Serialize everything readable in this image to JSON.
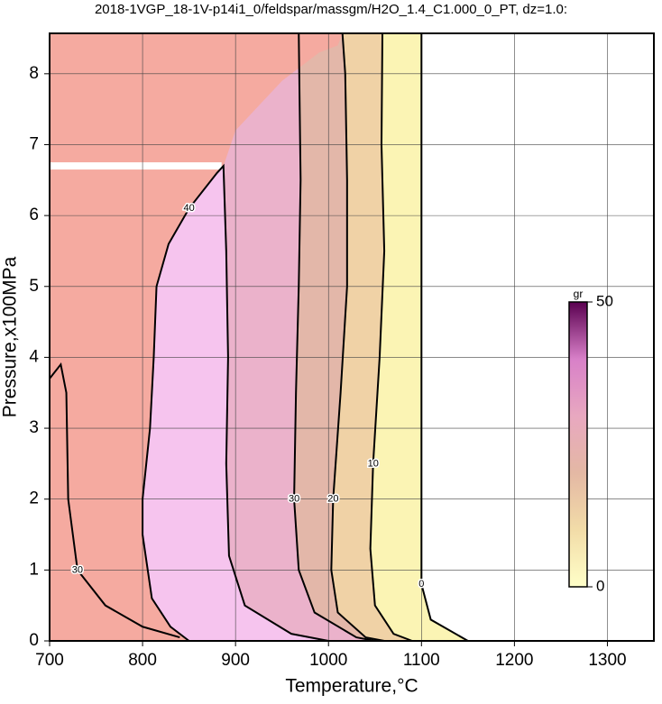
{
  "chart_data": {
    "type": "contour",
    "title": "2018-1VGP_18-1V-p14i1_0/feldspar/massgm/H2O_1.4_C1.000_0_PT, dz=1.0:",
    "x_label": "Temperature,°C",
    "y_label": "Pressure,x100MPa",
    "xlim": [
      700,
      1350
    ],
    "ylim": [
      0,
      8.57
    ],
    "xticks": [
      700,
      800,
      900,
      1000,
      1100,
      1200,
      1300
    ],
    "yticks": [
      0,
      1,
      2,
      3,
      4,
      5,
      6,
      7,
      8
    ],
    "grid": true,
    "series": [
      {
        "level": 0,
        "color": "#fbf4b4",
        "x": [
          1100,
          1100,
          1100,
          1110,
          1150
        ],
        "y": [
          8.57,
          4,
          0.8,
          0.3,
          0
        ]
      },
      {
        "level": 10,
        "color": "#f0d2a6",
        "x": [
          1058,
          1057,
          1060,
          1055,
          1048,
          1045,
          1050,
          1070,
          1090
        ],
        "y": [
          8.57,
          7,
          5.5,
          4,
          2.5,
          1.3,
          0.5,
          0.1,
          0
        ]
      },
      {
        "level": 20,
        "color": "#e3b7a9",
        "x": [
          1015,
          1018,
          1020,
          1020,
          1013,
          1005,
          1003,
          1010,
          1040,
          1060
        ],
        "y": [
          8.57,
          8.0,
          6.5,
          5,
          3.5,
          2,
          1,
          0.4,
          0.05,
          0
        ]
      },
      {
        "level": 30,
        "color": "#ebb2cb",
        "x": [
          968,
          970,
          968,
          965,
          963,
          968,
          985,
          1030,
          1050
        ],
        "y": [
          8.57,
          6.5,
          5,
          3.5,
          2,
          1.0,
          0.4,
          0.05,
          0
        ]
      },
      {
        "level": 30,
        "x": [
          700,
          712,
          718,
          720,
          730,
          760,
          800,
          840
        ],
        "y": [
          3.7,
          3.9,
          3.5,
          2,
          1,
          0.5,
          0.2,
          0.05
        ]
      },
      {
        "level": 40,
        "color": "#f6c4ee",
        "x": [
          850,
          830,
          810,
          800,
          800,
          808,
          812,
          815,
          828,
          850,
          880,
          887,
          890,
          892,
          890,
          893,
          910,
          960,
          1000
        ],
        "y": [
          0,
          0.2,
          0.6,
          1.5,
          2,
          3,
          4,
          5,
          5.6,
          6.1,
          6.6,
          6.7,
          5.5,
          4,
          2.5,
          1.2,
          0.5,
          0.1,
          0
        ]
      }
    ],
    "region": {
      "color": "#f5aaa0",
      "x": [
        850,
        830,
        810,
        800,
        800,
        808,
        812,
        815,
        828,
        850,
        887,
        900,
        950,
        990,
        1010,
        1015
      ],
      "y": [
        0,
        0.2,
        0.6,
        1.5,
        2,
        3,
        4,
        5,
        5.6,
        6.1,
        6.7,
        7.2,
        7.9,
        8.3,
        8.4,
        8.57
      ]
    },
    "blank_band": {
      "x": [
        700,
        885
      ],
      "y": 6.7
    },
    "colorbar": {
      "label": "gr",
      "lim": [
        0,
        50
      ],
      "ticks": [
        0,
        50
      ],
      "colors": [
        "#ffffc8",
        "#f2dca8",
        "#e4b8a4",
        "#e8a8c0",
        "#d880c8",
        "#5a0050"
      ]
    }
  }
}
